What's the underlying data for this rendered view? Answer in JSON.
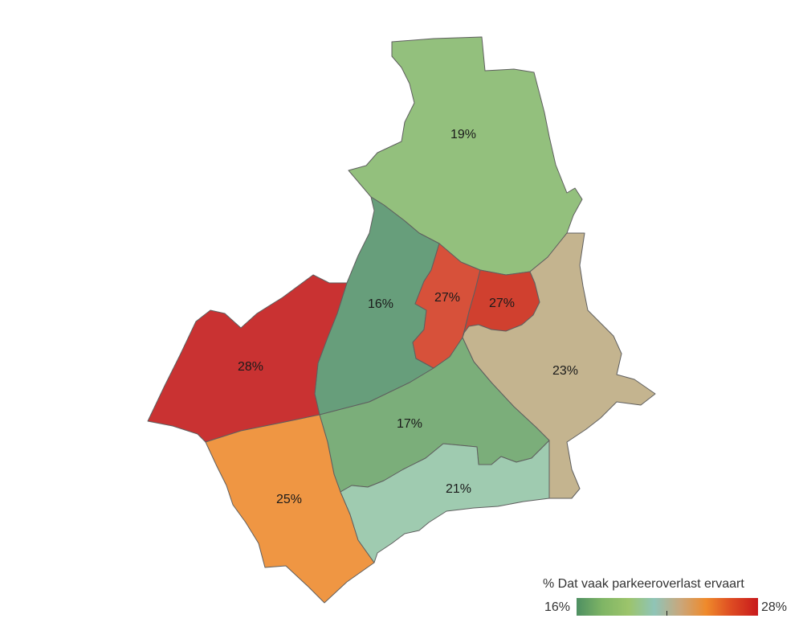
{
  "map": {
    "districts": [
      {
        "id": "noord",
        "label": "19%",
        "value": 19,
        "color": "#93c07d"
      },
      {
        "id": "west-centraal",
        "label": "16%",
        "value": 16,
        "color": "#679e7b"
      },
      {
        "id": "centrum-west",
        "label": "27%",
        "value": 27,
        "color": "#d7513a"
      },
      {
        "id": "centrum-oost",
        "label": "27%",
        "value": 27,
        "color": "#d0402f"
      },
      {
        "id": "oost",
        "label": "23%",
        "value": 23,
        "color": "#c4b48f"
      },
      {
        "id": "west",
        "label": "28%",
        "value": 28,
        "color": "#c93232"
      },
      {
        "id": "zuid-centraal",
        "label": "17%",
        "value": 17,
        "color": "#7bae7a"
      },
      {
        "id": "zuidwest",
        "label": "25%",
        "value": 25,
        "color": "#ef9643"
      },
      {
        "id": "zuid",
        "label": "21%",
        "value": 21,
        "color": "#9fcbb0"
      }
    ]
  },
  "legend": {
    "title": "% Dat vaak parkeeroverlast ervaart",
    "min_label": "16%",
    "max_label": "28%",
    "gradient_colors": [
      "#4e8f62",
      "#7fb565",
      "#9cc46b",
      "#8fc4b7",
      "#c9a77c",
      "#ef8a2b",
      "#dd4a22",
      "#c8191c"
    ]
  }
}
